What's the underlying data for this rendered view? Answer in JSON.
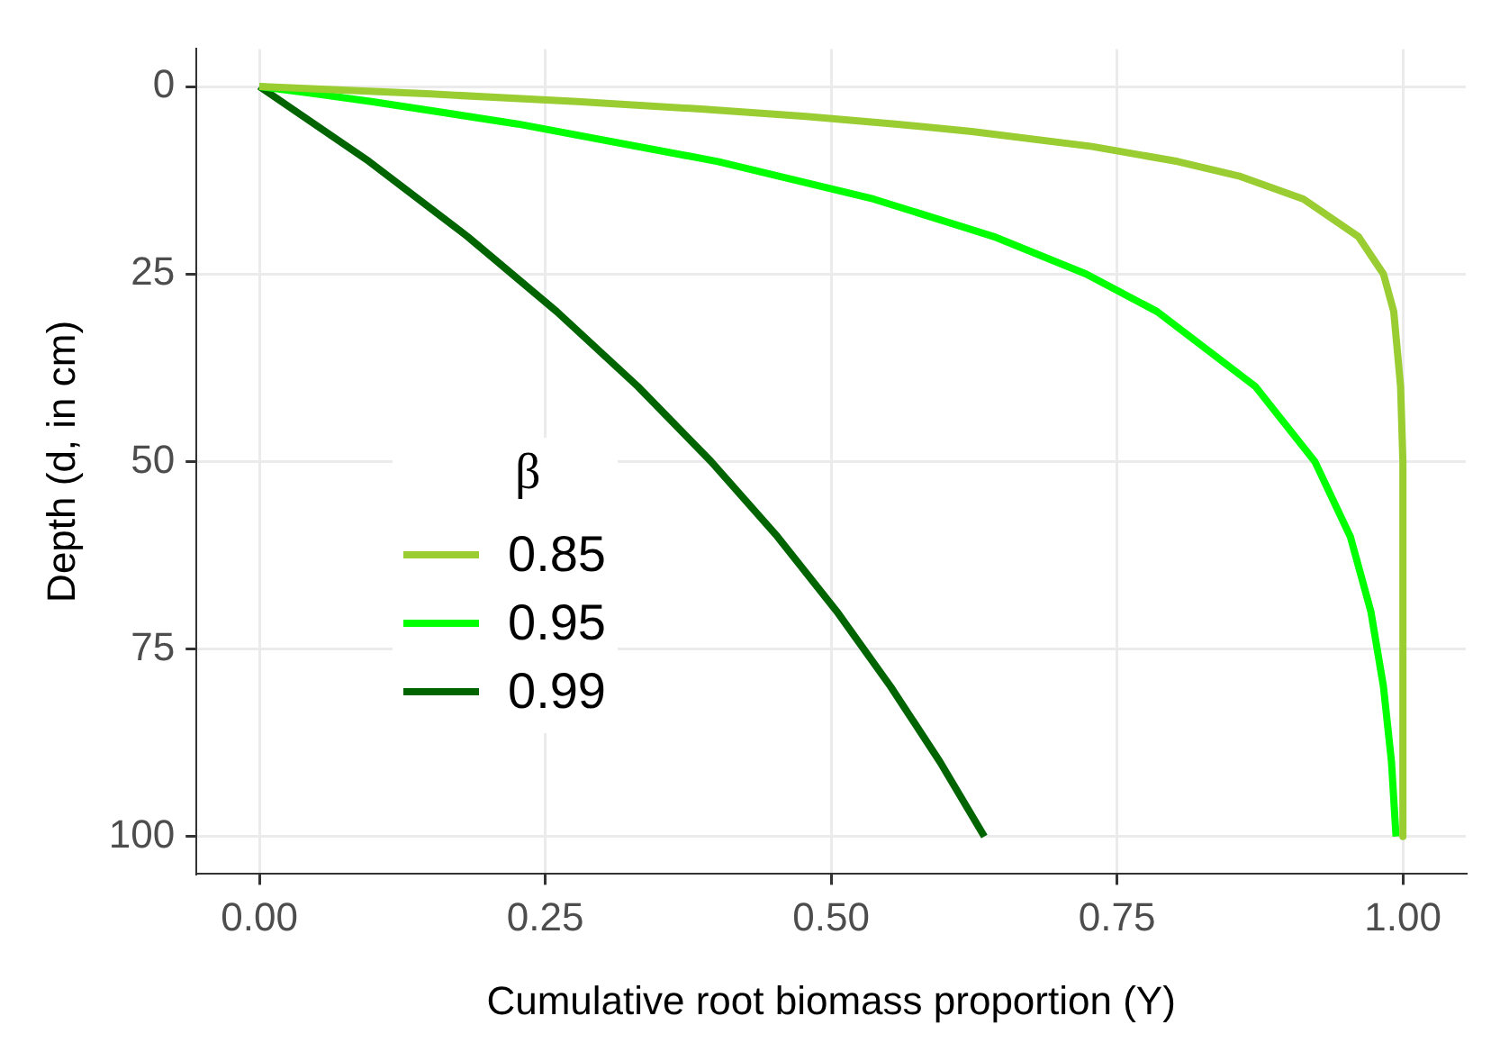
{
  "chart_data": {
    "type": "line",
    "xlabel": "Cumulative root biomass proportion (Y)",
    "ylabel": "Depth (d, in cm)",
    "legend_title": "β",
    "legend": "bottom left",
    "grid": true,
    "xlim": [
      -0.055,
      1.055
    ],
    "ylim": [
      105,
      -5
    ],
    "xticks": [
      {
        "value": 0,
        "label": "0.00"
      },
      {
        "value": 0.25,
        "label": "0.25"
      },
      {
        "value": 0.5,
        "label": "0.50"
      },
      {
        "value": 0.75,
        "label": "0.75"
      },
      {
        "value": 1,
        "label": "1.00"
      }
    ],
    "yticks": [
      0,
      25,
      50,
      75,
      100
    ],
    "series": [
      {
        "name": "0.85",
        "color": "#9acd32",
        "x": [
          0,
          0.15,
          0.278,
          0.386,
          0.478,
          0.556,
          0.623,
          0.728,
          0.803,
          0.858,
          0.913,
          0.961,
          0.983,
          0.992,
          0.998,
          1,
          1
        ],
        "values": [
          0,
          1,
          2,
          3,
          4,
          5,
          6,
          8,
          10,
          12,
          15,
          20,
          25,
          30,
          40,
          50,
          100
        ]
      },
      {
        "name": "0.95",
        "color": "#00ff00",
        "x": [
          0,
          0.05,
          0.098,
          0.226,
          0.401,
          0.537,
          0.642,
          0.723,
          0.785,
          0.871,
          0.923,
          0.954,
          0.972,
          0.983,
          0.99,
          0.994
        ],
        "values": [
          0,
          1,
          2,
          5,
          10,
          15,
          20,
          25,
          30,
          40,
          50,
          60,
          70,
          80,
          90,
          100
        ]
      },
      {
        "name": "0.99",
        "color": "#006400",
        "x": [
          0,
          0.096,
          0.182,
          0.26,
          0.331,
          0.395,
          0.453,
          0.505,
          0.552,
          0.595,
          0.634
        ],
        "values": [
          0,
          10,
          20,
          30,
          40,
          50,
          60,
          70,
          80,
          90,
          100
        ]
      }
    ]
  }
}
